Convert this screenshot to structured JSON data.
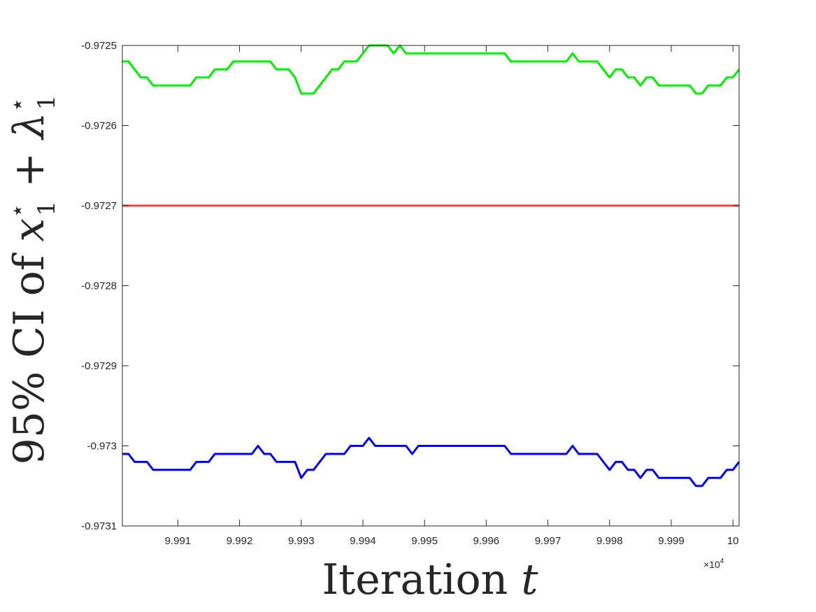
{
  "chart_data": {
    "type": "line",
    "xlabel_main": "Iteration ",
    "xlabel_var": "t",
    "ylabel_prefix": "95% CI of ",
    "ylabel_var1": "x",
    "ylabel_plus": " + ",
    "ylabel_var2": "λ",
    "ylabel_sup": "⋆",
    "ylabel_sub": "1",
    "x_multiplier_base": "×10",
    "x_multiplier_exp": "4",
    "xlim": [
      9.9901,
      10.0001
    ],
    "ylim": [
      -0.9731,
      -0.9725
    ],
    "x_ticks": [
      9.991,
      9.992,
      9.993,
      9.994,
      9.995,
      9.996,
      9.997,
      9.998,
      9.999,
      10
    ],
    "x_tick_labels": [
      "9.991",
      "9.992",
      "9.993",
      "9.994",
      "9.995",
      "9.996",
      "9.997",
      "9.998",
      "9.999",
      "10"
    ],
    "y_ticks": [
      -0.9725,
      -0.9726,
      -0.9727,
      -0.9728,
      -0.9729,
      -0.973,
      -0.9731
    ],
    "y_tick_labels": [
      "-0.9725",
      "-0.9726",
      "-0.9727",
      "-0.9728",
      "-0.9729",
      "-0.973",
      "-0.9731"
    ],
    "grid": false,
    "box": true,
    "series": [
      {
        "color": "#00ee00",
        "x": [
          9.9901,
          9.9902,
          9.9903,
          9.9904,
          9.9905,
          9.9906,
          9.9907,
          9.9908,
          9.9909,
          9.991,
          9.9911,
          9.9912,
          9.9913,
          9.9914,
          9.9915,
          9.9916,
          9.9917,
          9.9918,
          9.9919,
          9.992,
          9.9921,
          9.9922,
          9.9923,
          9.9924,
          9.9925,
          9.9926,
          9.9927,
          9.9928,
          9.9929,
          9.993,
          9.9931,
          9.9932,
          9.9933,
          9.9934,
          9.9935,
          9.9936,
          9.9937,
          9.9938,
          9.9939,
          9.994,
          9.9941,
          9.9942,
          9.9943,
          9.9944,
          9.9945,
          9.9946,
          9.9947,
          9.9948,
          9.9949,
          9.995,
          9.9951,
          9.9952,
          9.9953,
          9.9954,
          9.9955,
          9.9956,
          9.9957,
          9.9958,
          9.9959,
          9.996,
          9.9961,
          9.9962,
          9.9963,
          9.9964,
          9.9965,
          9.9966,
          9.9967,
          9.9968,
          9.9969,
          9.997,
          9.9971,
          9.9972,
          9.9973,
          9.9974,
          9.9975,
          9.9976,
          9.9977,
          9.9978,
          9.9979,
          9.998,
          9.9981,
          9.9982,
          9.9983,
          9.9984,
          9.9985,
          9.9986,
          9.9987,
          9.9988,
          9.9989,
          9.999,
          9.9991,
          9.9992,
          9.9993,
          9.9994,
          9.9995,
          9.9996,
          9.9997,
          9.9998,
          9.9999,
          10.0,
          10.0001
        ],
        "y": [
          -0.97252,
          -0.97252,
          -0.97253,
          -0.97254,
          -0.97254,
          -0.97255,
          -0.97255,
          -0.97255,
          -0.97255,
          -0.97255,
          -0.97255,
          -0.97255,
          -0.97254,
          -0.97254,
          -0.97254,
          -0.97253,
          -0.97253,
          -0.97253,
          -0.97252,
          -0.97252,
          -0.97252,
          -0.97252,
          -0.97252,
          -0.97252,
          -0.97252,
          -0.97253,
          -0.97253,
          -0.97253,
          -0.97254,
          -0.97256,
          -0.97256,
          -0.97256,
          -0.97255,
          -0.97254,
          -0.97253,
          -0.97253,
          -0.97252,
          -0.97252,
          -0.97252,
          -0.97251,
          -0.9725,
          -0.9725,
          -0.9725,
          -0.9725,
          -0.97251,
          -0.9725,
          -0.97251,
          -0.97251,
          -0.97251,
          -0.97251,
          -0.97251,
          -0.97251,
          -0.97251,
          -0.97251,
          -0.97251,
          -0.97251,
          -0.97251,
          -0.97251,
          -0.97251,
          -0.97251,
          -0.97251,
          -0.97251,
          -0.97251,
          -0.97252,
          -0.97252,
          -0.97252,
          -0.97252,
          -0.97252,
          -0.97252,
          -0.97252,
          -0.97252,
          -0.97252,
          -0.97252,
          -0.97251,
          -0.97252,
          -0.97252,
          -0.97252,
          -0.97252,
          -0.97253,
          -0.97254,
          -0.97253,
          -0.97253,
          -0.97254,
          -0.97254,
          -0.97255,
          -0.97254,
          -0.97254,
          -0.97255,
          -0.97255,
          -0.97255,
          -0.97255,
          -0.97255,
          -0.97255,
          -0.97256,
          -0.97256,
          -0.97255,
          -0.97255,
          -0.97255,
          -0.97254,
          -0.97254,
          -0.97253
        ]
      },
      {
        "color": "#ee4444",
        "x": [
          9.9901,
          10.0001
        ],
        "y": [
          -0.9727,
          -0.9727
        ]
      },
      {
        "color": "#0000ee",
        "x": [
          9.9901,
          9.9902,
          9.9903,
          9.9904,
          9.9905,
          9.9906,
          9.9907,
          9.9908,
          9.9909,
          9.991,
          9.9911,
          9.9912,
          9.9913,
          9.9914,
          9.9915,
          9.9916,
          9.9917,
          9.9918,
          9.9919,
          9.992,
          9.9921,
          9.9922,
          9.9923,
          9.9924,
          9.9925,
          9.9926,
          9.9927,
          9.9928,
          9.9929,
          9.993,
          9.9931,
          9.9932,
          9.9933,
          9.9934,
          9.9935,
          9.9936,
          9.9937,
          9.9938,
          9.9939,
          9.994,
          9.9941,
          9.9942,
          9.9943,
          9.9944,
          9.9945,
          9.9946,
          9.9947,
          9.9948,
          9.9949,
          9.995,
          9.9951,
          9.9952,
          9.9953,
          9.9954,
          9.9955,
          9.9956,
          9.9957,
          9.9958,
          9.9959,
          9.996,
          9.9961,
          9.9962,
          9.9963,
          9.9964,
          9.9965,
          9.9966,
          9.9967,
          9.9968,
          9.9969,
          9.997,
          9.9971,
          9.9972,
          9.9973,
          9.9974,
          9.9975,
          9.9976,
          9.9977,
          9.9978,
          9.9979,
          9.998,
          9.9981,
          9.9982,
          9.9983,
          9.9984,
          9.9985,
          9.9986,
          9.9987,
          9.9988,
          9.9989,
          9.999,
          9.9991,
          9.9992,
          9.9993,
          9.9994,
          9.9995,
          9.9996,
          9.9997,
          9.9998,
          9.9999,
          10.0,
          10.0001
        ],
        "y": [
          -0.97301,
          -0.97301,
          -0.97302,
          -0.97302,
          -0.97302,
          -0.97303,
          -0.97303,
          -0.97303,
          -0.97303,
          -0.97303,
          -0.97303,
          -0.97303,
          -0.97302,
          -0.97302,
          -0.97302,
          -0.97301,
          -0.97301,
          -0.97301,
          -0.97301,
          -0.97301,
          -0.97301,
          -0.97301,
          -0.973,
          -0.97301,
          -0.97301,
          -0.97302,
          -0.97302,
          -0.97302,
          -0.97302,
          -0.97304,
          -0.97303,
          -0.97303,
          -0.97302,
          -0.97301,
          -0.97301,
          -0.97301,
          -0.97301,
          -0.973,
          -0.973,
          -0.973,
          -0.97299,
          -0.973,
          -0.973,
          -0.973,
          -0.973,
          -0.973,
          -0.973,
          -0.97301,
          -0.973,
          -0.973,
          -0.973,
          -0.973,
          -0.973,
          -0.973,
          -0.973,
          -0.973,
          -0.973,
          -0.973,
          -0.973,
          -0.973,
          -0.973,
          -0.973,
          -0.973,
          -0.97301,
          -0.97301,
          -0.97301,
          -0.97301,
          -0.97301,
          -0.97301,
          -0.97301,
          -0.97301,
          -0.97301,
          -0.97301,
          -0.973,
          -0.97301,
          -0.97301,
          -0.97301,
          -0.97301,
          -0.97302,
          -0.97303,
          -0.97302,
          -0.97302,
          -0.97303,
          -0.97303,
          -0.97304,
          -0.97303,
          -0.97303,
          -0.97304,
          -0.97304,
          -0.97304,
          -0.97304,
          -0.97304,
          -0.97304,
          -0.97305,
          -0.97305,
          -0.97304,
          -0.97304,
          -0.97304,
          -0.97303,
          -0.97303,
          -0.97302
        ]
      }
    ]
  }
}
